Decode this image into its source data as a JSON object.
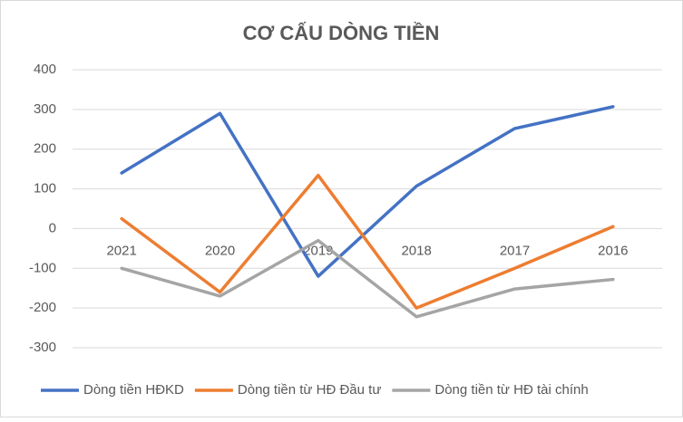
{
  "chart_data": {
    "type": "line",
    "title": "CƠ CẤU DÒNG TIỀN",
    "categories": [
      "2021",
      "2020",
      "2019",
      "2018",
      "2017",
      "2016"
    ],
    "series": [
      {
        "name": "Dòng tiền HĐKD",
        "color": "#4472c4",
        "values": [
          140,
          290,
          -120,
          107,
          252,
          307
        ]
      },
      {
        "name": "Dòng tiền từ HĐ Đầu tư",
        "color": "#ed7d31",
        "values": [
          25,
          -160,
          134,
          -200,
          -100,
          5
        ]
      },
      {
        "name": "Dòng tiền từ HĐ tài chính",
        "color": "#a5a5a5",
        "values": [
          -100,
          -170,
          -30,
          -222,
          -152,
          -128
        ]
      }
    ],
    "ylim": [
      -300,
      400
    ],
    "yticks": [
      -300,
      -200,
      -100,
      0,
      100,
      200,
      300,
      400
    ],
    "grid": true,
    "legend": "bottom"
  }
}
